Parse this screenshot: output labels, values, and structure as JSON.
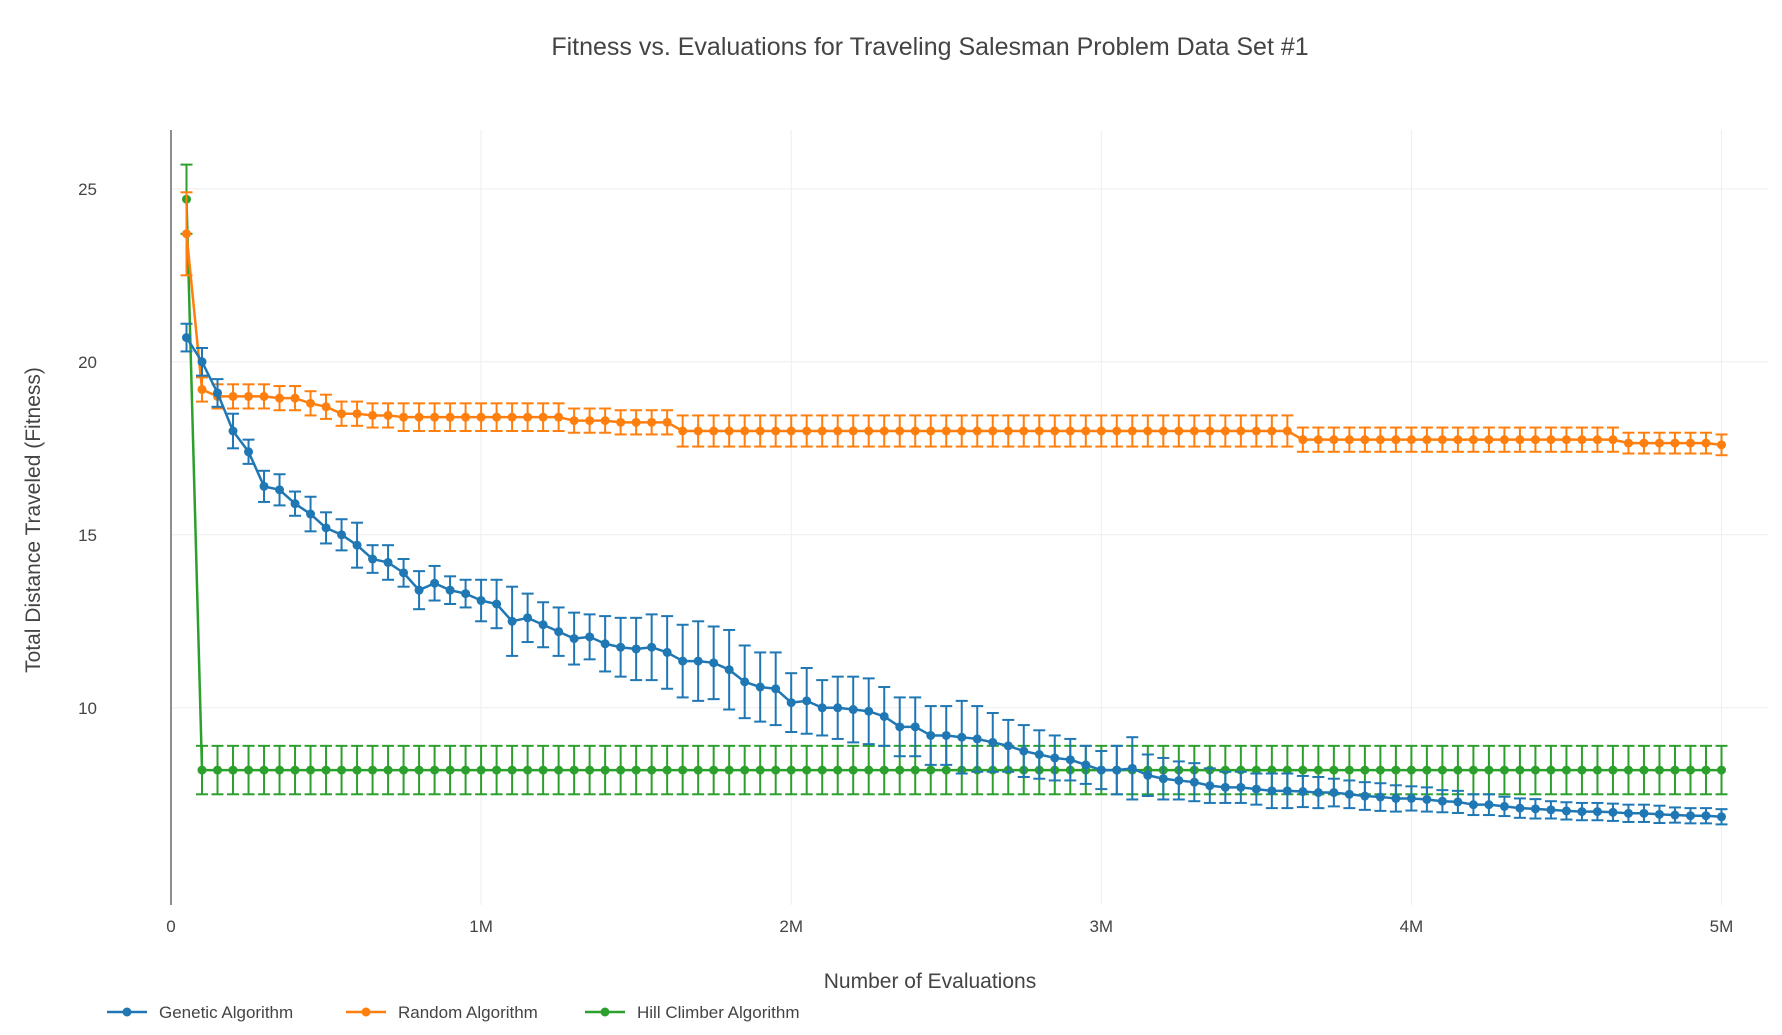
{
  "chart_data": {
    "type": "line",
    "title": "Fitness vs. Evaluations for Traveling Salesman Problem Data Set #1",
    "xlabel": "Number of Evaluations",
    "ylabel": "Total Distance Traveled (Fitness)",
    "xlim": [
      0,
      5150000
    ],
    "ylim": [
      4.3,
      26.7
    ],
    "x_ticks": [
      0,
      1000000,
      2000000,
      3000000,
      4000000,
      5000000
    ],
    "x_tick_labels": [
      "0",
      "1M",
      "2M",
      "3M",
      "4M",
      "5M"
    ],
    "y_ticks": [
      10,
      15,
      20,
      25
    ],
    "y_tick_labels": [
      "10",
      "15",
      "20",
      "25"
    ],
    "grid": true,
    "legend_position": "bottom-left",
    "x": {
      "start": 50000,
      "step": 50000,
      "count": 100
    },
    "series": [
      {
        "name": "Genetic Algorithm",
        "color": "#1f77b4",
        "values": [
          20.7,
          20.0,
          19.1,
          18.0,
          17.4,
          16.4,
          16.3,
          15.9,
          15.6,
          15.2,
          15.0,
          14.7,
          14.3,
          14.2,
          13.9,
          13.4,
          13.6,
          13.4,
          13.3,
          13.1,
          13.0,
          12.5,
          12.6,
          12.4,
          12.2,
          12.0,
          12.05,
          11.85,
          11.75,
          11.7,
          11.75,
          11.6,
          11.35,
          11.35,
          11.3,
          11.1,
          10.75,
          10.6,
          10.55,
          10.15,
          10.2,
          10.0,
          10.0,
          9.95,
          9.9,
          9.75,
          9.45,
          9.45,
          9.2,
          9.2,
          9.15,
          9.1,
          9.0,
          8.9,
          8.75,
          8.65,
          8.55,
          8.5,
          8.35,
          8.2,
          8.2,
          8.25,
          8.05,
          7.95,
          7.9,
          7.85,
          7.75,
          7.7,
          7.7,
          7.65,
          7.6,
          7.6,
          7.58,
          7.55,
          7.55,
          7.5,
          7.45,
          7.42,
          7.38,
          7.38,
          7.35,
          7.3,
          7.28,
          7.2,
          7.2,
          7.15,
          7.1,
          7.08,
          7.05,
          7.02,
          7.0,
          7.0,
          6.98,
          6.95,
          6.95,
          6.92,
          6.9,
          6.88,
          6.88,
          6.85
        ],
        "errors": [
          0.4,
          0.4,
          0.4,
          0.5,
          0.35,
          0.45,
          0.45,
          0.35,
          0.5,
          0.45,
          0.45,
          0.65,
          0.4,
          0.5,
          0.4,
          0.55,
          0.5,
          0.4,
          0.4,
          0.6,
          0.7,
          1.0,
          0.7,
          0.65,
          0.7,
          0.75,
          0.65,
          0.8,
          0.85,
          0.9,
          0.95,
          1.05,
          1.05,
          1.15,
          1.05,
          1.15,
          1.05,
          1.0,
          1.05,
          0.85,
          0.95,
          0.8,
          0.9,
          0.95,
          0.95,
          0.85,
          0.85,
          0.85,
          0.85,
          0.85,
          1.05,
          0.95,
          0.85,
          0.75,
          0.75,
          0.7,
          0.65,
          0.6,
          0.55,
          0.55,
          0.7,
          0.9,
          0.6,
          0.6,
          0.55,
          0.55,
          0.5,
          0.45,
          0.45,
          0.45,
          0.5,
          0.5,
          0.45,
          0.45,
          0.4,
          0.4,
          0.4,
          0.4,
          0.38,
          0.35,
          0.35,
          0.32,
          0.32,
          0.3,
          0.3,
          0.28,
          0.28,
          0.28,
          0.25,
          0.25,
          0.25,
          0.25,
          0.25,
          0.25,
          0.25,
          0.25,
          0.22,
          0.22,
          0.22,
          0.22
        ]
      },
      {
        "name": "Random Algorithm",
        "color": "#ff7f0e",
        "values": [
          23.7,
          19.2,
          19.0,
          19.0,
          19.0,
          19.0,
          18.95,
          18.95,
          18.8,
          18.7,
          18.5,
          18.5,
          18.45,
          18.45,
          18.4,
          18.4,
          18.4,
          18.4,
          18.4,
          18.4,
          18.4,
          18.4,
          18.4,
          18.4,
          18.4,
          18.3,
          18.3,
          18.3,
          18.25,
          18.25,
          18.25,
          18.25,
          18.0,
          18.0,
          18.0,
          18.0,
          18.0,
          18.0,
          18.0,
          18.0,
          18.0,
          18.0,
          18.0,
          18.0,
          18.0,
          18.0,
          18.0,
          18.0,
          18.0,
          18.0,
          18.0,
          18.0,
          18.0,
          18.0,
          18.0,
          18.0,
          18.0,
          18.0,
          18.0,
          18.0,
          18.0,
          18.0,
          18.0,
          18.0,
          18.0,
          18.0,
          18.0,
          18.0,
          18.0,
          18.0,
          18.0,
          18.0,
          17.75,
          17.75,
          17.75,
          17.75,
          17.75,
          17.75,
          17.75,
          17.75,
          17.75,
          17.75,
          17.75,
          17.75,
          17.75,
          17.75,
          17.75,
          17.75,
          17.75,
          17.75,
          17.75,
          17.75,
          17.75,
          17.65,
          17.65,
          17.65,
          17.65,
          17.65,
          17.65,
          17.6
        ],
        "errors": [
          1.2,
          0.35,
          0.35,
          0.35,
          0.35,
          0.35,
          0.35,
          0.35,
          0.35,
          0.35,
          0.35,
          0.35,
          0.35,
          0.35,
          0.4,
          0.4,
          0.4,
          0.4,
          0.4,
          0.4,
          0.4,
          0.4,
          0.4,
          0.4,
          0.4,
          0.35,
          0.35,
          0.35,
          0.35,
          0.35,
          0.35,
          0.35,
          0.45,
          0.45,
          0.45,
          0.45,
          0.45,
          0.45,
          0.45,
          0.45,
          0.45,
          0.45,
          0.45,
          0.45,
          0.45,
          0.45,
          0.45,
          0.45,
          0.45,
          0.45,
          0.45,
          0.45,
          0.45,
          0.45,
          0.45,
          0.45,
          0.45,
          0.45,
          0.45,
          0.45,
          0.45,
          0.45,
          0.45,
          0.45,
          0.45,
          0.45,
          0.45,
          0.45,
          0.45,
          0.45,
          0.45,
          0.45,
          0.35,
          0.35,
          0.35,
          0.35,
          0.35,
          0.35,
          0.35,
          0.35,
          0.35,
          0.35,
          0.35,
          0.35,
          0.35,
          0.35,
          0.35,
          0.35,
          0.35,
          0.35,
          0.35,
          0.35,
          0.35,
          0.3,
          0.3,
          0.3,
          0.3,
          0.3,
          0.3,
          0.3
        ]
      },
      {
        "name": "Hill Climber Algorithm",
        "color": "#2ca02c",
        "values": [
          24.7,
          8.2,
          8.2,
          8.2,
          8.2,
          8.2,
          8.2,
          8.2,
          8.2,
          8.2,
          8.2,
          8.2,
          8.2,
          8.2,
          8.2,
          8.2,
          8.2,
          8.2,
          8.2,
          8.2,
          8.2,
          8.2,
          8.2,
          8.2,
          8.2,
          8.2,
          8.2,
          8.2,
          8.2,
          8.2,
          8.2,
          8.2,
          8.2,
          8.2,
          8.2,
          8.2,
          8.2,
          8.2,
          8.2,
          8.2,
          8.2,
          8.2,
          8.2,
          8.2,
          8.2,
          8.2,
          8.2,
          8.2,
          8.2,
          8.2,
          8.2,
          8.2,
          8.2,
          8.2,
          8.2,
          8.2,
          8.2,
          8.2,
          8.2,
          8.2,
          8.2,
          8.2,
          8.2,
          8.2,
          8.2,
          8.2,
          8.2,
          8.2,
          8.2,
          8.2,
          8.2,
          8.2,
          8.2,
          8.2,
          8.2,
          8.2,
          8.2,
          8.2,
          8.2,
          8.2,
          8.2,
          8.2,
          8.2,
          8.2,
          8.2,
          8.2,
          8.2,
          8.2,
          8.2,
          8.2,
          8.2,
          8.2,
          8.2,
          8.2,
          8.2,
          8.2,
          8.2,
          8.2,
          8.2,
          8.2
        ],
        "errors": [
          1.0,
          0.7,
          0.7,
          0.7,
          0.7,
          0.7,
          0.7,
          0.7,
          0.7,
          0.7,
          0.7,
          0.7,
          0.7,
          0.7,
          0.7,
          0.7,
          0.7,
          0.7,
          0.7,
          0.7,
          0.7,
          0.7,
          0.7,
          0.7,
          0.7,
          0.7,
          0.7,
          0.7,
          0.7,
          0.7,
          0.7,
          0.7,
          0.7,
          0.7,
          0.7,
          0.7,
          0.7,
          0.7,
          0.7,
          0.7,
          0.7,
          0.7,
          0.7,
          0.7,
          0.7,
          0.7,
          0.7,
          0.7,
          0.7,
          0.7,
          0.7,
          0.7,
          0.7,
          0.7,
          0.7,
          0.7,
          0.7,
          0.7,
          0.7,
          0.7,
          0.7,
          0.7,
          0.7,
          0.7,
          0.7,
          0.7,
          0.7,
          0.7,
          0.7,
          0.7,
          0.7,
          0.7,
          0.7,
          0.7,
          0.7,
          0.7,
          0.7,
          0.7,
          0.7,
          0.7,
          0.7,
          0.7,
          0.7,
          0.7,
          0.7,
          0.7,
          0.7,
          0.7,
          0.7,
          0.7,
          0.7,
          0.7,
          0.7,
          0.7,
          0.7,
          0.7,
          0.7,
          0.7,
          0.7,
          0.7
        ]
      }
    ]
  },
  "colors": {
    "grid": "#eeeeee",
    "axis": "#444444",
    "text": "#444444",
    "background": "#ffffff"
  }
}
